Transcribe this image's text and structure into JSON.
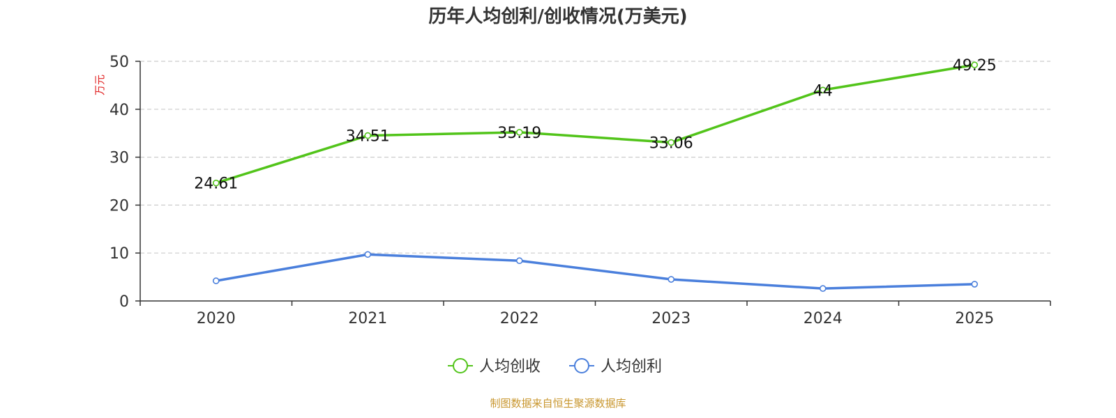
{
  "chart_data": {
    "type": "line",
    "title": "历年人均创利/创收情况(万美元)",
    "ylabel": "万元",
    "categories": [
      "2020",
      "2021",
      "2022",
      "2023",
      "2024",
      "2025"
    ],
    "ylim": [
      0,
      50
    ],
    "yticks": [
      "0",
      "10",
      "20",
      "30",
      "40",
      "50"
    ],
    "grid": true,
    "series": [
      {
        "name": "人均创收",
        "color": "#52c41a",
        "values": [
          24.61,
          34.51,
          35.19,
          33.06,
          44,
          49.25
        ],
        "labels": [
          "24.61",
          "34.51",
          "35.19",
          "33.06",
          "44",
          "49.25"
        ]
      },
      {
        "name": "人均创利",
        "color": "#4a7fdc",
        "values": [
          4.2,
          9.7,
          8.4,
          4.5,
          2.6,
          3.5
        ]
      }
    ],
    "legend_position": "bottom",
    "source": "制图数据来自恒生聚源数据库"
  }
}
